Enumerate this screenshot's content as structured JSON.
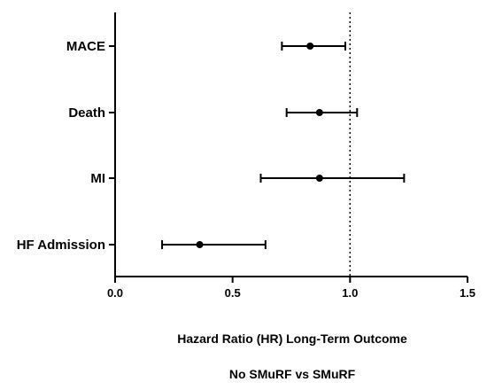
{
  "chart_data": {
    "type": "forest",
    "rows": [
      {
        "label": "MACE",
        "estimate": 0.83,
        "lower": 0.71,
        "upper": 0.98
      },
      {
        "label": "Death",
        "estimate": 0.87,
        "lower": 0.73,
        "upper": 1.03
      },
      {
        "label": "MI",
        "estimate": 0.87,
        "lower": 0.62,
        "upper": 1.23
      },
      {
        "label": "HF Admission",
        "estimate": 0.36,
        "lower": 0.2,
        "upper": 0.64
      }
    ],
    "xlim": [
      0,
      1.5
    ],
    "xticks": [
      "0.0",
      "0.5",
      "1.0",
      "1.5"
    ],
    "reference_line": 1.0,
    "xlabel": "Hazard Ratio (HR) Long-Term Outcome",
    "xlabel2": "No SMuRF vs SMuRF",
    "grid": false
  }
}
